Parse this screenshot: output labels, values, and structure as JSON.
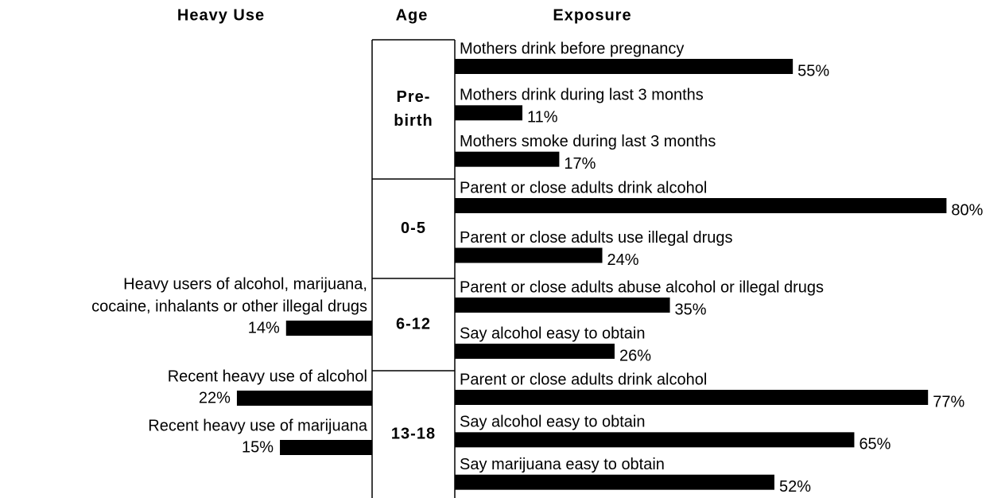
{
  "chart_data": {
    "type": "bar",
    "headers": {
      "left": "Heavy Use",
      "center": "Age",
      "right": "Exposure"
    },
    "color": "#000000",
    "groups": [
      {
        "age": [
          "Pre-",
          "birth"
        ],
        "exposure": {
          "categories": [
            "Mothers drink before pregnancy",
            "Mothers drink during last 3 months",
            "Mothers smoke during last 3 months"
          ],
          "values": [
            55,
            11,
            17
          ],
          "value_labels": [
            "55%",
            "11%",
            "17%"
          ]
        },
        "heavy_use": {
          "categories": [],
          "values": [],
          "value_labels": []
        }
      },
      {
        "age": [
          "0-5"
        ],
        "exposure": {
          "categories": [
            "Parent or close adults drink alcohol",
            "Parent or close adults use illegal drugs"
          ],
          "values": [
            80,
            24
          ],
          "value_labels": [
            "80%",
            "24%"
          ]
        },
        "heavy_use": {
          "categories": [],
          "values": [],
          "value_labels": []
        }
      },
      {
        "age": [
          "6-12"
        ],
        "exposure": {
          "categories": [
            "Parent or close adults abuse alcohol or illegal drugs",
            "Say alcohol easy to obtain"
          ],
          "values": [
            35,
            26
          ],
          "value_labels": [
            "35%",
            "26%"
          ]
        },
        "heavy_use": {
          "categories": [
            [
              "Heavy users of alcohol, marijuana,",
              "cocaine, inhalants or other illegal drugs"
            ]
          ],
          "values": [
            14
          ],
          "value_labels": [
            "14%"
          ]
        }
      },
      {
        "age": [
          "13-18"
        ],
        "exposure": {
          "categories": [
            "Parent or close adults drink alcohol",
            "Say alcohol easy to obtain",
            "Say marijuana easy to obtain"
          ],
          "values": [
            77,
            65,
            52
          ],
          "value_labels": [
            "77%",
            "65%",
            "52%"
          ]
        },
        "heavy_use": {
          "categories": [
            [
              "Recent heavy use of alcohol"
            ],
            [
              "Recent heavy use of marijuana"
            ]
          ],
          "values": [
            22,
            15
          ],
          "value_labels": [
            "22%",
            "15%"
          ]
        }
      }
    ]
  }
}
